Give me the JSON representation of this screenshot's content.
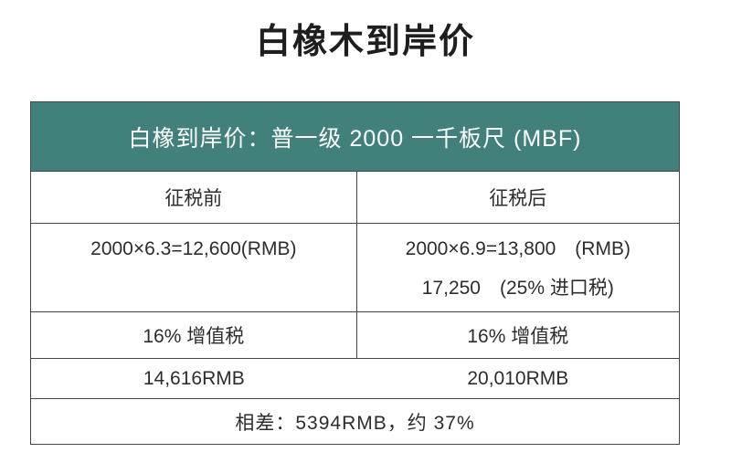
{
  "page": {
    "title": "白橡木到岸价"
  },
  "colors": {
    "banner_background": "#42807c",
    "banner_text": "#ffffff",
    "table_border": "#454545",
    "body_text": "#2d2d2d"
  },
  "table": {
    "banner": "白橡到岸价：普一级 2000 一千板尺 (MBF)",
    "columns": {
      "before_tax": "征税前",
      "after_tax": "征税后"
    },
    "price_row": {
      "before_calc": "2000×6.3=12,600(RMB)",
      "after_calc": "2000×6.9=13,800　(RMB)",
      "after_import_tax": "17,250　(25% 进口税)"
    },
    "vat_row": {
      "before_vat": "16% 增值税",
      "after_vat": "16% 增值税"
    },
    "total_row": {
      "before_total": "14,616RMB",
      "after_total": "20,010RMB"
    },
    "difference": "相差：5394RMB，约 37%"
  }
}
